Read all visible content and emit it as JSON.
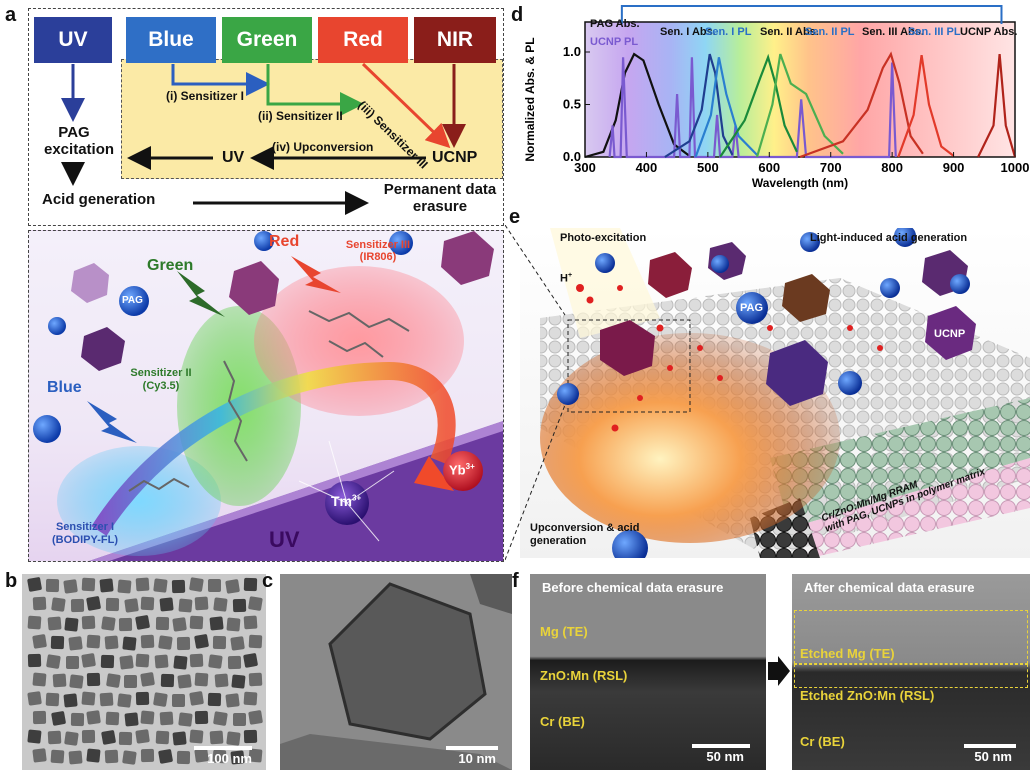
{
  "panels": {
    "a": "a",
    "b": "b",
    "c": "c",
    "d": "d",
    "e": "e",
    "f": "f"
  },
  "panel_a": {
    "boxes": [
      {
        "label": "UV",
        "color": "#2b3f9a"
      },
      {
        "label": "Blue",
        "color": "#2f6fc6"
      },
      {
        "label": "Green",
        "color": "#3aa645"
      },
      {
        "label": "Red",
        "color": "#e8452f"
      },
      {
        "label": "NIR",
        "color": "#8a1e1a"
      }
    ],
    "step1": "(i) Sensitizer I",
    "step2": "(ii) Sensitizer II",
    "step3": "(iii) Sensitizer III",
    "step4": "(iv) Upconversion",
    "pag_excitation": "PAG excitation",
    "uv": "UV",
    "ucnp": "UCNP",
    "acid": "Acid  generation",
    "erasure": "Permanent data erasure",
    "illus": {
      "green": "Green",
      "red": "Red",
      "blue": "Blue",
      "pag": "PAG",
      "sens3": "Sensitizer III (IR806)",
      "sens2": "Sensitizer II (Cy3.5)",
      "sens1": "Sensitizer I (BODIPY-FL)",
      "uv": "UV",
      "tm": "Tm",
      "tm_sup": "3+",
      "yb": "Yb",
      "yb_sup": "3+"
    }
  },
  "panel_b": {
    "scale": "100 nm"
  },
  "panel_c": {
    "scale": "10 nm"
  },
  "panel_d": {
    "chart_data": {
      "type": "line",
      "xlabel": "Wavelength (nm)",
      "ylabel": "Normalized Abs. & PL",
      "xlim": [
        300,
        1000
      ],
      "ylim": [
        0,
        1.0
      ],
      "xticks": [
        300,
        400,
        500,
        600,
        700,
        800,
        900,
        1000
      ],
      "yticks": [
        "0.0",
        "0.5",
        "1.0"
      ],
      "series": [
        {
          "name": "PAG Abs.",
          "color": "#111111",
          "points": [
            [
              300,
              0
            ],
            [
              330,
              0.05
            ],
            [
              350,
              0.35
            ],
            [
              365,
              0.8
            ],
            [
              380,
              0.98
            ],
            [
              395,
              0.92
            ],
            [
              420,
              0.5
            ],
            [
              445,
              0.12
            ],
            [
              470,
              0.01
            ]
          ]
        },
        {
          "name": "UCNP PL",
          "color": "#7a5ad0",
          "points": [
            [
              340,
              0
            ],
            [
              345,
              0.3
            ],
            [
              348,
              0.0
            ],
            [
              358,
              0
            ],
            [
              362,
              0.95
            ],
            [
              368,
              0.0
            ],
            [
              445,
              0
            ],
            [
              450,
              0.6
            ],
            [
              455,
              0.0
            ],
            [
              470,
              0
            ],
            [
              474,
              0.95
            ],
            [
              479,
              0.0
            ],
            [
              510,
              0
            ],
            [
              515,
              0.4
            ],
            [
              520,
              0.0
            ],
            [
              540,
              0
            ],
            [
              545,
              0.3
            ],
            [
              550,
              0.0
            ],
            [
              645,
              0
            ],
            [
              652,
              0.55
            ],
            [
              660,
              0.0
            ],
            [
              795,
              0
            ],
            [
              800,
              0.9
            ],
            [
              806,
              0.0
            ]
          ]
        },
        {
          "name": "Sen. I Abs.",
          "color": "#1f3e8f",
          "points": [
            [
              430,
              0
            ],
            [
              470,
              0.15
            ],
            [
              490,
              0.45
            ],
            [
              503,
              0.98
            ],
            [
              512,
              0.8
            ],
            [
              525,
              0.2
            ],
            [
              540,
              0.02
            ]
          ]
        },
        {
          "name": "Sen. I PL",
          "color": "#2a7fd0",
          "points": [
            [
              480,
              0
            ],
            [
              505,
              0.4
            ],
            [
              518,
              0.95
            ],
            [
              530,
              0.6
            ],
            [
              550,
              0.2
            ],
            [
              580,
              0.02
            ]
          ]
        },
        {
          "name": "Sen. II Abs.",
          "color": "#1a8a3a",
          "points": [
            [
              520,
              0
            ],
            [
              560,
              0.35
            ],
            [
              585,
              0.75
            ],
            [
              598,
              0.95
            ],
            [
              610,
              0.7
            ],
            [
              625,
              0.3
            ],
            [
              645,
              0.05
            ]
          ]
        },
        {
          "name": "Sen. II PL",
          "color": "#4caf50",
          "points": [
            [
              580,
              0
            ],
            [
              605,
              0.5
            ],
            [
              618,
              0.98
            ],
            [
              635,
              0.7
            ],
            [
              660,
              0.6
            ],
            [
              690,
              0.2
            ],
            [
              720,
              0.03
            ]
          ]
        },
        {
          "name": "Sen. III Abs.",
          "color": "#c83224",
          "points": [
            [
              650,
              0
            ],
            [
              720,
              0.15
            ],
            [
              760,
              0.45
            ],
            [
              785,
              0.85
            ],
            [
              798,
              0.98
            ],
            [
              812,
              0.7
            ],
            [
              830,
              0.2
            ],
            [
              850,
              0.03
            ]
          ]
        },
        {
          "name": "Sen. III PL",
          "color": "#e23a2a",
          "points": [
            [
              810,
              0
            ],
            [
              835,
              0.4
            ],
            [
              848,
              0.97
            ],
            [
              860,
              0.5
            ],
            [
              880,
              0.1
            ],
            [
              900,
              0.01
            ]
          ]
        },
        {
          "name": "UCNP Abs.",
          "color": "#b0231a",
          "points": [
            [
              940,
              0
            ],
            [
              965,
              0.3
            ],
            [
              975,
              0.98
            ],
            [
              985,
              0.3
            ],
            [
              1000,
              0
            ]
          ]
        }
      ]
    },
    "legend": [
      {
        "text": "PAG Abs.",
        "color": "#111"
      },
      {
        "text": "UCNP PL",
        "color": "#7a5ad0"
      },
      {
        "text": "Sen. I Abs.",
        "color": "#111"
      },
      {
        "text": "Sen. I PL",
        "color": "#2a6fc6"
      },
      {
        "text": "Sen. II Abs.",
        "color": "#111"
      },
      {
        "text": "Sen. II PL",
        "color": "#2a6fc6"
      },
      {
        "text": "Sen. III Abs.",
        "color": "#111"
      },
      {
        "text": "Sen. III PL",
        "color": "#2a6fc6"
      },
      {
        "text": "UCNP Abs.",
        "color": "#111"
      }
    ]
  },
  "panel_e": {
    "photo": "Photo-excitation",
    "light_acid": "Light-induced acid generation",
    "h": "H",
    "h_sup": "+",
    "pag": "PAG",
    "ucnp": "UCNP",
    "upconv": "Upconversion & acid generation",
    "device1": "Cr/ZnO:Mn/Mg RRAM",
    "device2": "with PAG, UCNPs in polymer matrix"
  },
  "panel_f": {
    "before": "Before chemical data erasure",
    "after": "After chemical data erasure",
    "mg": "Mg (TE)",
    "zno": "ZnO:Mn (RSL)",
    "cr": "Cr (BE)",
    "etched_mg": "Etched Mg  (TE)",
    "etched_zno": "Etched ZnO:Mn (RSL)",
    "cr2": "Cr (BE)",
    "scale1": "50 nm",
    "scale2": "50 nm"
  }
}
